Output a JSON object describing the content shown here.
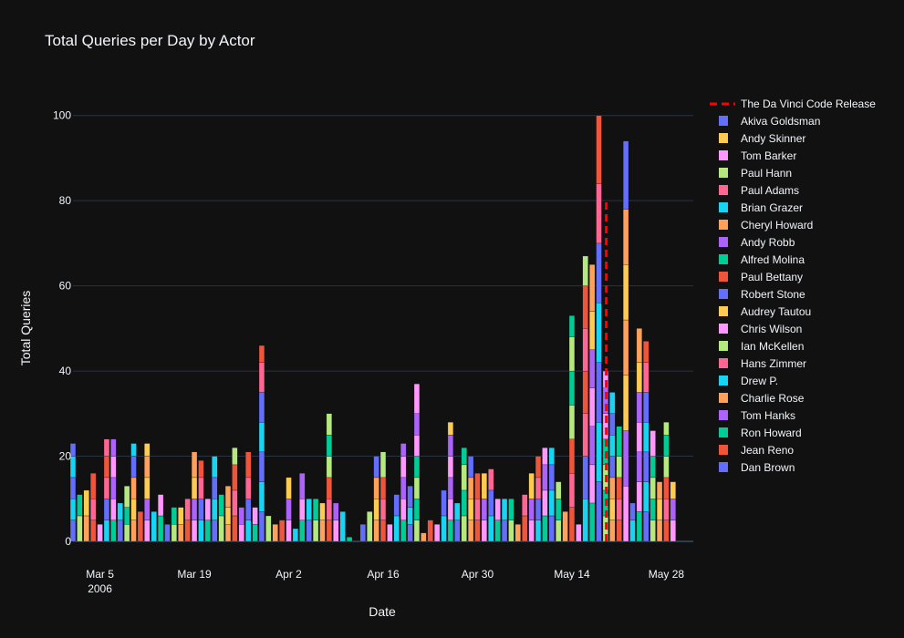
{
  "chart_data": {
    "type": "bar",
    "barmode": "stack",
    "title": "Total Queries per Day by Actor",
    "xlabel": "Date",
    "ylabel": "Total Queries",
    "xlim": [
      "2006-03-01",
      "2006-06-01"
    ],
    "ylim": [
      0,
      110
    ],
    "ytick_values": [
      0,
      20,
      40,
      60,
      80,
      100
    ],
    "xtick_labels": [
      {
        "date": "2006-03-05",
        "label": "Mar 5",
        "sublabel": "2006"
      },
      {
        "date": "2006-03-19",
        "label": "Mar 19"
      },
      {
        "date": "2006-04-02",
        "label": "Apr 2"
      },
      {
        "date": "2006-04-16",
        "label": "Apr 16"
      },
      {
        "date": "2006-04-30",
        "label": "Apr 30"
      },
      {
        "date": "2006-05-14",
        "label": "May 14"
      },
      {
        "date": "2006-05-28",
        "label": "May 28"
      }
    ],
    "grid": true,
    "legend_position": "right",
    "release_marker": {
      "name": "The Da Vinci Code Release",
      "date": "2006-05-19",
      "y_range": [
        0,
        80
      ],
      "color": "#ff0000",
      "style": "dashed"
    },
    "series": [
      {
        "name": "Akiva Goldsman",
        "color": "#636efa"
      },
      {
        "name": "Andy Skinner",
        "color": "#fecb52"
      },
      {
        "name": "Tom Barker",
        "color": "#ff97ff"
      },
      {
        "name": "Paul Hann",
        "color": "#b6e880"
      },
      {
        "name": "Paul Adams",
        "color": "#ff6692"
      },
      {
        "name": "Brian Grazer",
        "color": "#19d3f3"
      },
      {
        "name": "Cheryl Howard",
        "color": "#ffa15a"
      },
      {
        "name": "Andy Robb",
        "color": "#ab63fa"
      },
      {
        "name": "Alfred Molina",
        "color": "#00cc96"
      },
      {
        "name": "Paul Bettany",
        "color": "#ef553b"
      },
      {
        "name": "Robert Stone",
        "color": "#636efa"
      },
      {
        "name": "Audrey Tautou",
        "color": "#fecb52"
      },
      {
        "name": "Chris Wilson",
        "color": "#ff97ff"
      },
      {
        "name": "Ian McKellen",
        "color": "#b6e880"
      },
      {
        "name": "Hans Zimmer",
        "color": "#ff6692"
      },
      {
        "name": "Drew P.",
        "color": "#19d3f3"
      },
      {
        "name": "Charlie Rose",
        "color": "#ffa15a"
      },
      {
        "name": "Tom Hanks",
        "color": "#ab63fa"
      },
      {
        "name": "Ron Howard",
        "color": "#00cc96"
      },
      {
        "name": "Jean Reno",
        "color": "#ef553b"
      },
      {
        "name": "Dan Brown",
        "color": "#636efa"
      }
    ],
    "daily_totals": [
      {
        "date": "2006-03-01",
        "total": 23
      },
      {
        "date": "2006-03-02",
        "total": 11
      },
      {
        "date": "2006-03-03",
        "total": 12
      },
      {
        "date": "2006-03-04",
        "total": 16
      },
      {
        "date": "2006-03-05",
        "total": 4
      },
      {
        "date": "2006-03-06",
        "total": 24
      },
      {
        "date": "2006-03-07",
        "total": 24
      },
      {
        "date": "2006-03-08",
        "total": 9
      },
      {
        "date": "2006-03-09",
        "total": 13
      },
      {
        "date": "2006-03-10",
        "total": 23
      },
      {
        "date": "2006-03-11",
        "total": 7
      },
      {
        "date": "2006-03-12",
        "total": 23
      },
      {
        "date": "2006-03-13",
        "total": 7
      },
      {
        "date": "2006-03-14",
        "total": 11
      },
      {
        "date": "2006-03-15",
        "total": 4
      },
      {
        "date": "2006-03-16",
        "total": 8
      },
      {
        "date": "2006-03-17",
        "total": 8
      },
      {
        "date": "2006-03-18",
        "total": 10
      },
      {
        "date": "2006-03-19",
        "total": 21
      },
      {
        "date": "2006-03-20",
        "total": 19
      },
      {
        "date": "2006-03-21",
        "total": 10
      },
      {
        "date": "2006-03-22",
        "total": 20
      },
      {
        "date": "2006-03-23",
        "total": 11
      },
      {
        "date": "2006-03-24",
        "total": 13
      },
      {
        "date": "2006-03-25",
        "total": 22
      },
      {
        "date": "2006-03-26",
        "total": 8
      },
      {
        "date": "2006-03-27",
        "total": 21
      },
      {
        "date": "2006-03-28",
        "total": 8
      },
      {
        "date": "2006-03-29",
        "total": 46
      },
      {
        "date": "2006-03-30",
        "total": 6
      },
      {
        "date": "2006-03-31",
        "total": 4
      },
      {
        "date": "2006-04-01",
        "total": 5
      },
      {
        "date": "2006-04-02",
        "total": 15
      },
      {
        "date": "2006-04-03",
        "total": 3
      },
      {
        "date": "2006-04-04",
        "total": 16
      },
      {
        "date": "2006-04-05",
        "total": 10
      },
      {
        "date": "2006-04-06",
        "total": 10
      },
      {
        "date": "2006-04-07",
        "total": 9
      },
      {
        "date": "2006-04-08",
        "total": 30
      },
      {
        "date": "2006-04-09",
        "total": 9
      },
      {
        "date": "2006-04-10",
        "total": 7
      },
      {
        "date": "2006-04-11",
        "total": 1
      },
      {
        "date": "2006-04-13",
        "total": 4
      },
      {
        "date": "2006-04-14",
        "total": 7
      },
      {
        "date": "2006-04-15",
        "total": 20
      },
      {
        "date": "2006-04-16",
        "total": 21
      },
      {
        "date": "2006-04-17",
        "total": 4
      },
      {
        "date": "2006-04-18",
        "total": 11
      },
      {
        "date": "2006-04-19",
        "total": 23
      },
      {
        "date": "2006-04-20",
        "total": 13
      },
      {
        "date": "2006-04-21",
        "total": 37
      },
      {
        "date": "2006-04-22",
        "total": 2
      },
      {
        "date": "2006-04-23",
        "total": 5
      },
      {
        "date": "2006-04-24",
        "total": 4
      },
      {
        "date": "2006-04-25",
        "total": 12
      },
      {
        "date": "2006-04-26",
        "total": 28
      },
      {
        "date": "2006-04-27",
        "total": 9
      },
      {
        "date": "2006-04-28",
        "total": 22
      },
      {
        "date": "2006-04-29",
        "total": 20
      },
      {
        "date": "2006-04-30",
        "total": 16
      },
      {
        "date": "2006-05-01",
        "total": 16
      },
      {
        "date": "2006-05-02",
        "total": 17
      },
      {
        "date": "2006-05-03",
        "total": 10
      },
      {
        "date": "2006-05-04",
        "total": 10
      },
      {
        "date": "2006-05-05",
        "total": 10
      },
      {
        "date": "2006-05-06",
        "total": 4
      },
      {
        "date": "2006-05-07",
        "total": 11
      },
      {
        "date": "2006-05-08",
        "total": 16
      },
      {
        "date": "2006-05-09",
        "total": 20
      },
      {
        "date": "2006-05-10",
        "total": 22
      },
      {
        "date": "2006-05-11",
        "total": 22
      },
      {
        "date": "2006-05-12",
        "total": 14
      },
      {
        "date": "2006-05-13",
        "total": 7
      },
      {
        "date": "2006-05-14",
        "total": 53
      },
      {
        "date": "2006-05-15",
        "total": 4
      },
      {
        "date": "2006-05-16",
        "total": 67
      },
      {
        "date": "2006-05-17",
        "total": 65
      },
      {
        "date": "2006-05-18",
        "total": 100
      },
      {
        "date": "2006-05-19",
        "total": 40
      },
      {
        "date": "2006-05-20",
        "total": 35
      },
      {
        "date": "2006-05-21",
        "total": 27
      },
      {
        "date": "2006-05-22",
        "total": 94
      },
      {
        "date": "2006-05-23",
        "total": 9
      },
      {
        "date": "2006-05-24",
        "total": 50
      },
      {
        "date": "2006-05-25",
        "total": 47
      },
      {
        "date": "2006-05-26",
        "total": 26
      },
      {
        "date": "2006-05-27",
        "total": 14
      },
      {
        "date": "2006-05-28",
        "total": 28
      },
      {
        "date": "2006-05-29",
        "total": 14
      }
    ]
  }
}
